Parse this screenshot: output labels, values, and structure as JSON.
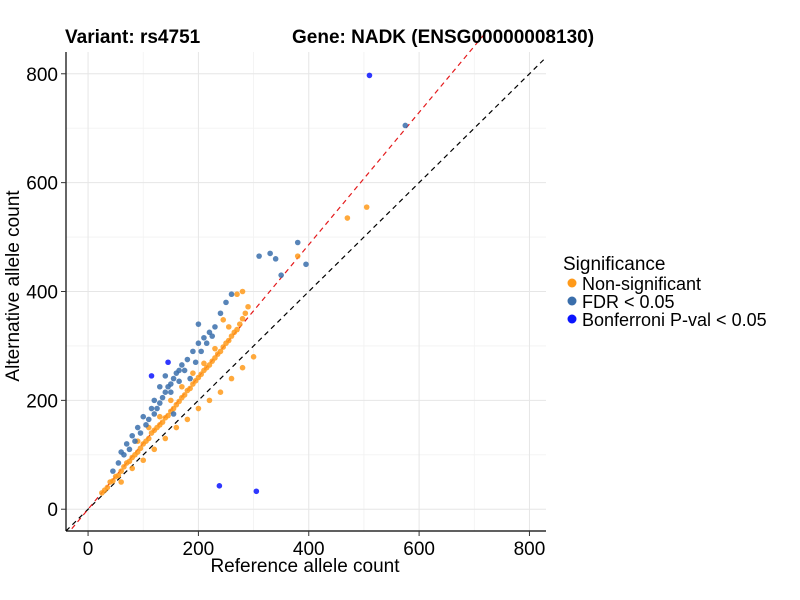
{
  "chart_data": {
    "type": "scatter",
    "title_left": "Variant: rs4751",
    "title_right": "Gene: NADK (ENSG00000008130)",
    "xlabel": "Reference allele count",
    "ylabel": "Alternative allele count",
    "xlim": [
      -40,
      830
    ],
    "ylim": [
      -40,
      840
    ],
    "xticks": [
      0,
      200,
      400,
      600,
      800
    ],
    "yticks": [
      0,
      200,
      400,
      600,
      800
    ],
    "grid": true,
    "reference_lines": [
      {
        "name": "identity",
        "slope": 1.0,
        "intercept": 0,
        "color": "#000000",
        "style": "dashed"
      },
      {
        "name": "fit",
        "slope": 1.215,
        "intercept": 0,
        "color": "#e41a1c",
        "style": "dashed"
      }
    ],
    "legend": {
      "title": "Significance",
      "position": "right",
      "entries": [
        {
          "label": "Non-significant",
          "color": "#ff9a1a"
        },
        {
          "label": "FDR < 0.05",
          "color": "#3a6eab"
        },
        {
          "label": "Bonferroni P-val < 0.05",
          "color": "#0a14ff"
        }
      ]
    },
    "series": [
      {
        "name": "Non-significant",
        "color": "#ff9a1a",
        "points": [
          [
            25,
            30
          ],
          [
            30,
            35
          ],
          [
            35,
            40
          ],
          [
            40,
            50
          ],
          [
            45,
            52
          ],
          [
            50,
            60
          ],
          [
            55,
            62
          ],
          [
            60,
            70
          ],
          [
            65,
            78
          ],
          [
            70,
            85
          ],
          [
            75,
            88
          ],
          [
            80,
            95
          ],
          [
            85,
            100
          ],
          [
            90,
            105
          ],
          [
            95,
            112
          ],
          [
            100,
            120
          ],
          [
            105,
            125
          ],
          [
            110,
            130
          ],
          [
            115,
            140
          ],
          [
            120,
            145
          ],
          [
            125,
            150
          ],
          [
            130,
            155
          ],
          [
            135,
            160
          ],
          [
            140,
            168
          ],
          [
            145,
            172
          ],
          [
            150,
            180
          ],
          [
            155,
            185
          ],
          [
            160,
            192
          ],
          [
            165,
            198
          ],
          [
            170,
            205
          ],
          [
            175,
            210
          ],
          [
            180,
            218
          ],
          [
            185,
            222
          ],
          [
            190,
            230
          ],
          [
            195,
            236
          ],
          [
            200,
            242
          ],
          [
            205,
            248
          ],
          [
            210,
            255
          ],
          [
            215,
            260
          ],
          [
            220,
            265
          ],
          [
            225,
            272
          ],
          [
            230,
            278
          ],
          [
            235,
            285
          ],
          [
            240,
            290
          ],
          [
            245,
            298
          ],
          [
            250,
            305
          ],
          [
            255,
            310
          ],
          [
            260,
            318
          ],
          [
            265,
            325
          ],
          [
            270,
            330
          ],
          [
            275,
            340
          ],
          [
            280,
            350
          ],
          [
            285,
            360
          ],
          [
            290,
            372
          ],
          [
            270,
            395
          ],
          [
            280,
            400
          ],
          [
            245,
            348
          ],
          [
            255,
            335
          ],
          [
            60,
            50
          ],
          [
            80,
            75
          ],
          [
            100,
            90
          ],
          [
            120,
            110
          ],
          [
            140,
            130
          ],
          [
            160,
            150
          ],
          [
            180,
            165
          ],
          [
            200,
            185
          ],
          [
            220,
            200
          ],
          [
            240,
            215
          ],
          [
            260,
            240
          ],
          [
            280,
            260
          ],
          [
            300,
            280
          ],
          [
            90,
            125
          ],
          [
            110,
            150
          ],
          [
            130,
            170
          ],
          [
            150,
            200
          ],
          [
            170,
            225
          ],
          [
            190,
            250
          ],
          [
            210,
            268
          ],
          [
            230,
            295
          ],
          [
            470,
            535
          ],
          [
            505,
            555
          ],
          [
            380,
            465
          ]
        ]
      },
      {
        "name": "FDR < 0.05",
        "color": "#3a6eab",
        "points": [
          [
            45,
            70
          ],
          [
            55,
            85
          ],
          [
            65,
            100
          ],
          [
            75,
            110
          ],
          [
            85,
            125
          ],
          [
            95,
            140
          ],
          [
            105,
            155
          ],
          [
            110,
            165
          ],
          [
            120,
            175
          ],
          [
            125,
            185
          ],
          [
            130,
            195
          ],
          [
            135,
            205
          ],
          [
            140,
            215
          ],
          [
            145,
            225
          ],
          [
            150,
            230
          ],
          [
            155,
            240
          ],
          [
            160,
            250
          ],
          [
            165,
            255
          ],
          [
            170,
            265
          ],
          [
            180,
            275
          ],
          [
            190,
            290
          ],
          [
            200,
            305
          ],
          [
            210,
            315
          ],
          [
            220,
            325
          ],
          [
            230,
            335
          ],
          [
            200,
            340
          ],
          [
            250,
            380
          ],
          [
            240,
            360
          ],
          [
            260,
            395
          ],
          [
            225,
            318
          ],
          [
            215,
            305
          ],
          [
            140,
            245
          ],
          [
            130,
            225
          ],
          [
            100,
            170
          ],
          [
            120,
            200
          ],
          [
            90,
            150
          ],
          [
            80,
            135
          ],
          [
            70,
            120
          ],
          [
            60,
            105
          ],
          [
            310,
            465
          ],
          [
            330,
            470
          ],
          [
            340,
            460
          ],
          [
            380,
            490
          ],
          [
            350,
            430
          ],
          [
            395,
            450
          ],
          [
            575,
            705
          ],
          [
            155,
            175
          ],
          [
            185,
            240
          ],
          [
            195,
            270
          ],
          [
            205,
            290
          ],
          [
            175,
            255
          ],
          [
            165,
            235
          ],
          [
            150,
            215
          ],
          [
            115,
            185
          ]
        ]
      },
      {
        "name": "Bonferroni P-val < 0.05",
        "color": "#0a14ff",
        "points": [
          [
            510,
            797
          ],
          [
            145,
            270
          ],
          [
            115,
            245
          ],
          [
            238,
            43
          ],
          [
            305,
            33
          ]
        ]
      }
    ]
  }
}
